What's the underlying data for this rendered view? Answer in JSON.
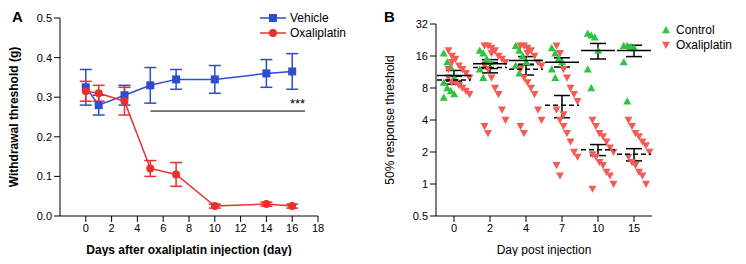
{
  "chart_data": [
    {
      "type": "line",
      "panel": "A",
      "x_label": "Days after oxaliplatin injection (day)",
      "y_label": "Withdrawal threshold (g)",
      "x": [
        0,
        1,
        3,
        5,
        7,
        10,
        14,
        16
      ],
      "xlim": [
        -2,
        18
      ],
      "xticks": [
        0,
        2,
        4,
        6,
        8,
        10,
        12,
        14,
        16,
        18
      ],
      "ylim": [
        0,
        0.5
      ],
      "yticks": [
        {
          "value": 0,
          "label": "0.0"
        },
        {
          "value": 0.1,
          "label": "0.1"
        },
        {
          "value": 0.2,
          "label": "0.2"
        },
        {
          "value": 0.3,
          "label": "0.3"
        },
        {
          "value": 0.4,
          "label": "0.4"
        },
        {
          "value": 0.5,
          "label": "0.5"
        }
      ],
      "legend": "upper right",
      "series": [
        {
          "name": "Vehicle",
          "color": "#2f4bd0",
          "marker": "square",
          "values": [
            0.325,
            0.28,
            0.305,
            0.33,
            0.345,
            0.345,
            0.36,
            0.365
          ],
          "errors": [
            0.045,
            0.025,
            0.025,
            0.045,
            0.025,
            0.035,
            0.035,
            0.045
          ]
        },
        {
          "name": "Oxaliplatin",
          "color": "#e8312f",
          "marker": "circle",
          "values": [
            0.315,
            0.31,
            0.29,
            0.12,
            0.105,
            0.025,
            0.03,
            0.025
          ],
          "errors": [
            0.025,
            0.02,
            0.035,
            0.02,
            0.03,
            0.005,
            0.005,
            0.005
          ]
        }
      ],
      "annotations": [
        {
          "text": "***",
          "x_range": [
            5,
            17
          ],
          "y": 0.265
        }
      ]
    },
    {
      "type": "scatter",
      "panel": "B",
      "x_label": "Day post injection",
      "y_label": "50% response threshold",
      "categories": [
        "0",
        "2",
        "4",
        "7",
        "10",
        "15"
      ],
      "log": "y",
      "ylim": [
        0.5,
        32
      ],
      "yticks": [
        0.5,
        1,
        2,
        4,
        8,
        16,
        32
      ],
      "legend": "right",
      "series": [
        {
          "name": "Control",
          "color": "#2bc63e",
          "marker": "triangle-up",
          "line_style": "solid",
          "values": [
            [
              17,
              14,
              12.5,
              10,
              9,
              8,
              7.5,
              7,
              6.5
            ],
            [
              18,
              17,
              15,
              14,
              12,
              10
            ],
            [
              20,
              18,
              16,
              14,
              13,
              11
            ],
            [
              19,
              17,
              15,
              14,
              12,
              10
            ],
            [
              26,
              25,
              24,
              18,
              12,
              8
            ],
            [
              20,
              20,
              19.5,
              19,
              14,
              6
            ]
          ],
          "mean": [
            10.5,
            13.5,
            14.5,
            14,
            18,
            18
          ],
          "sem": [
            1.2,
            1.3,
            1.3,
            1.4,
            3,
            2.2
          ]
        },
        {
          "name": "Oxaliplatin",
          "color": "#f25c54",
          "marker": "triangle-down",
          "line_style": "dashed",
          "values": [
            [
              18,
              16,
              15,
              13,
              12,
              11,
              10,
              10,
              9,
              9,
              8.5,
              8,
              7.5,
              7,
              12,
              14
            ],
            [
              20,
              20,
              19,
              18,
              16,
              15,
              14,
              13,
              12,
              10,
              8,
              7,
              5,
              4,
              3.5,
              3,
              17
            ],
            [
              20,
              20,
              19,
              18,
              16,
              14,
              13,
              12,
              10,
              9,
              8,
              7,
              5,
              4,
              3.5,
              3,
              17
            ],
            [
              20,
              17,
              12,
              10,
              8,
              7,
              6,
              5,
              4,
              3.5,
              3,
              2.5,
              2,
              1.8,
              1.5,
              1.2,
              4.5
            ],
            [
              4,
              3.5,
              3,
              2.8,
              2.5,
              2.2,
              2,
              1.9,
              1.8,
              1.6,
              1.5,
              1.3,
              1.2,
              1,
              0.9
            ],
            [
              4,
              3.5,
              3,
              2.8,
              2.5,
              2.3,
              2,
              1.8,
              1.6,
              1.5,
              1.3,
              1.2,
              1
            ]
          ],
          "mean": [
            9.5,
            12.5,
            12,
            5.5,
            2.1,
            1.9
          ],
          "sem": [
            0.8,
            1.4,
            1.4,
            1.3,
            0.25,
            0.25
          ]
        }
      ]
    }
  ]
}
